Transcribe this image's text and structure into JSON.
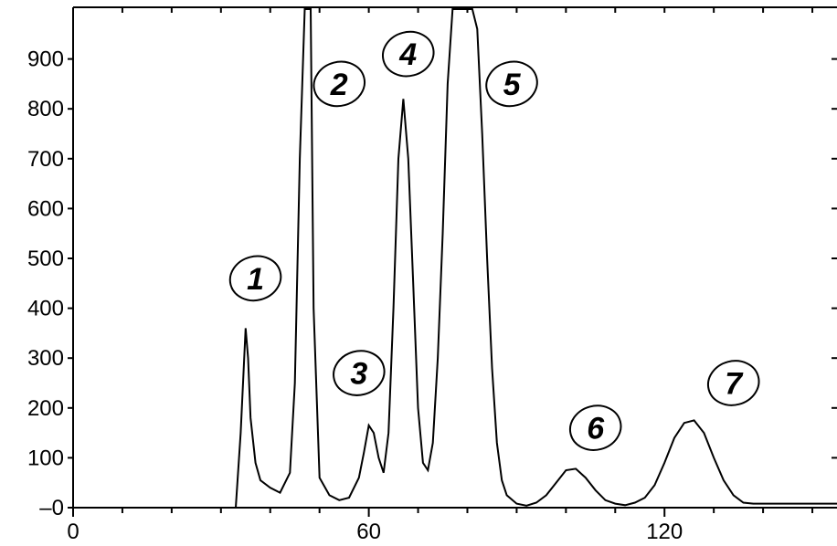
{
  "chart_data": {
    "type": "line",
    "title": "",
    "xlabel": "",
    "ylabel": "",
    "xlim": [
      0,
      155
    ],
    "ylim": [
      0,
      1000
    ],
    "x_ticks": [
      0,
      60,
      120
    ],
    "x_tick_labels": [
      "0",
      "60",
      "120"
    ],
    "y_ticks": [
      0,
      100,
      200,
      300,
      400,
      500,
      600,
      700,
      800,
      900
    ],
    "y_tick_labels": [
      "–0",
      "100",
      "200",
      "300",
      "400",
      "500",
      "600",
      "700",
      "800",
      "900"
    ],
    "grid": false,
    "series": [
      {
        "x": [
          0,
          33,
          34,
          35,
          35.5,
          36,
          37,
          38,
          40,
          42,
          44,
          45,
          46,
          47,
          47.6,
          48.2,
          48.8,
          50,
          52,
          54,
          56,
          58,
          59,
          60,
          61,
          62,
          63,
          64,
          65,
          66,
          67,
          68,
          69,
          70,
          71,
          72,
          73,
          74,
          75,
          76,
          77,
          78,
          79,
          80,
          81,
          82,
          83,
          84,
          85,
          86,
          87,
          88,
          90,
          92,
          94,
          96,
          98,
          100,
          102,
          104,
          106,
          108,
          110,
          112,
          114,
          116,
          118,
          120,
          122,
          124,
          126,
          128,
          130,
          132,
          134,
          136,
          138,
          140,
          142,
          144,
          146,
          148,
          150,
          152,
          155
        ],
        "y": [
          0,
          0,
          150,
          360,
          300,
          180,
          90,
          55,
          40,
          30,
          70,
          250,
          700,
          1000,
          1000,
          1000,
          400,
          60,
          25,
          15,
          20,
          60,
          110,
          165,
          150,
          100,
          70,
          150,
          400,
          700,
          820,
          700,
          450,
          200,
          90,
          75,
          130,
          300,
          550,
          850,
          1000,
          1000,
          1000,
          1000,
          1000,
          960,
          750,
          500,
          280,
          130,
          55,
          25,
          8,
          4,
          10,
          25,
          50,
          75,
          78,
          60,
          35,
          15,
          8,
          5,
          10,
          20,
          45,
          90,
          140,
          170,
          175,
          150,
          100,
          55,
          25,
          10,
          8,
          8,
          8,
          8,
          8,
          8,
          8,
          8,
          8
        ]
      }
    ],
    "annotations": [
      {
        "label": "1",
        "x": 37,
        "y": 460
      },
      {
        "label": "2",
        "x": 54,
        "y": 850
      },
      {
        "label": "3",
        "x": 58,
        "y": 270
      },
      {
        "label": "4",
        "x": 68,
        "y": 910
      },
      {
        "label": "5",
        "x": 89,
        "y": 850
      },
      {
        "label": "6",
        "x": 106,
        "y": 160
      },
      {
        "label": "7",
        "x": 134,
        "y": 250
      }
    ]
  }
}
